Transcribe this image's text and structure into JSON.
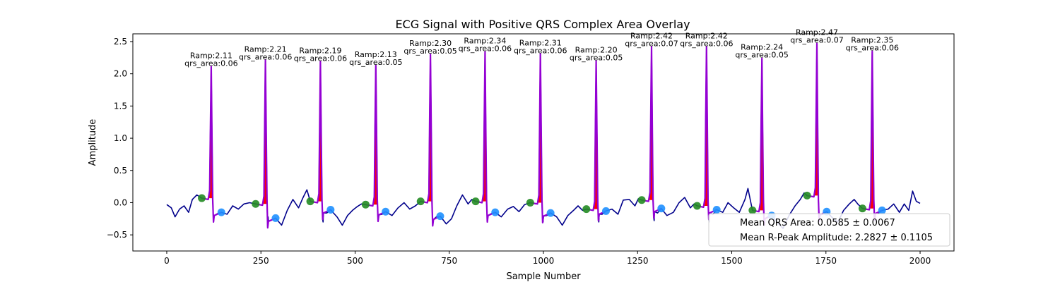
{
  "chart_data": {
    "type": "line",
    "title": "ECG Signal with Positive QRS Complex Area Overlay",
    "xlabel": "Sample Number",
    "ylabel": "Amplitude",
    "xlim": [
      -90,
      2090
    ],
    "ylim": [
      -0.75,
      2.62
    ],
    "xticks": [
      0,
      250,
      500,
      750,
      1000,
      1250,
      1500,
      1750,
      2000
    ],
    "xtick_labels": [
      "0",
      "250",
      "500",
      "750",
      "1000",
      "1250",
      "1500",
      "1750",
      "2000"
    ],
    "yticks": [
      -0.5,
      0.0,
      0.5,
      1.0,
      1.5,
      2.0,
      2.5
    ],
    "ytick_labels": [
      "−0.5",
      "0.0",
      "0.5",
      "1.0",
      "1.5",
      "2.0",
      "2.5"
    ],
    "grid": false,
    "colors": {
      "signal": "#00008b",
      "qrs_segment": "#9400d3",
      "qrs_area": "#ff0000",
      "q_marker": "#228b22",
      "s_marker": "#1e90ff"
    },
    "beats": [
      {
        "r_sample": 118,
        "r_amp": 2.11,
        "qrs_area": "0.06",
        "q_sample": 93,
        "q_amp": 0.07,
        "s_sample": 145,
        "s_amp": -0.15
      },
      {
        "r_sample": 262,
        "r_amp": 2.21,
        "qrs_area": "0.06",
        "q_sample": 236,
        "q_amp": -0.02,
        "s_sample": 289,
        "s_amp": -0.24
      },
      {
        "r_sample": 408,
        "r_amp": 2.19,
        "qrs_area": "0.06",
        "q_sample": 381,
        "q_amp": 0.02,
        "s_sample": 435,
        "s_amp": -0.11
      },
      {
        "r_sample": 555,
        "r_amp": 2.13,
        "qrs_area": "0.05",
        "q_sample": 528,
        "q_amp": -0.03,
        "s_sample": 581,
        "s_amp": -0.14
      },
      {
        "r_sample": 700,
        "r_amp": 2.3,
        "qrs_area": "0.05",
        "q_sample": 674,
        "q_amp": 0.02,
        "s_sample": 726,
        "s_amp": -0.21
      },
      {
        "r_sample": 845,
        "r_amp": 2.34,
        "qrs_area": "0.06",
        "q_sample": 820,
        "q_amp": 0.02,
        "s_sample": 872,
        "s_amp": -0.15
      },
      {
        "r_sample": 992,
        "r_amp": 2.31,
        "qrs_area": "0.06",
        "q_sample": 965,
        "q_amp": 0.0,
        "s_sample": 1019,
        "s_amp": -0.16
      },
      {
        "r_sample": 1140,
        "r_amp": 2.2,
        "qrs_area": "0.05",
        "q_sample": 1114,
        "q_amp": -0.1,
        "s_sample": 1166,
        "s_amp": -0.13
      },
      {
        "r_sample": 1287,
        "r_amp": 2.42,
        "qrs_area": "0.07",
        "q_sample": 1261,
        "q_amp": 0.04,
        "s_sample": 1313,
        "s_amp": -0.09
      },
      {
        "r_sample": 1433,
        "r_amp": 2.42,
        "qrs_area": "0.06",
        "q_sample": 1408,
        "q_amp": -0.05,
        "s_sample": 1460,
        "s_amp": -0.11
      },
      {
        "r_sample": 1580,
        "r_amp": 2.24,
        "qrs_area": "0.05",
        "q_sample": 1555,
        "q_amp": -0.12,
        "s_sample": 1606,
        "s_amp": -0.2
      },
      {
        "r_sample": 1726,
        "r_amp": 2.47,
        "qrs_area": "0.07",
        "q_sample": 1700,
        "q_amp": 0.11,
        "s_sample": 1752,
        "s_amp": -0.14
      },
      {
        "r_sample": 1873,
        "r_amp": 2.35,
        "qrs_area": "0.06",
        "q_sample": 1847,
        "q_amp": -0.09,
        "s_sample": 1899,
        "s_amp": -0.12
      }
    ],
    "baseline_points": [
      [
        0,
        -0.03
      ],
      [
        12,
        -0.08
      ],
      [
        22,
        -0.22
      ],
      [
        34,
        -0.1
      ],
      [
        46,
        -0.05
      ],
      [
        58,
        -0.15
      ],
      [
        68,
        0.05
      ],
      [
        80,
        0.12
      ],
      [
        93,
        0.07
      ],
      [
        125,
        -0.25
      ],
      [
        135,
        -0.17
      ],
      [
        145,
        -0.15
      ],
      [
        160,
        -0.18
      ],
      [
        175,
        -0.05
      ],
      [
        190,
        -0.1
      ],
      [
        205,
        -0.02
      ],
      [
        220,
        0.0
      ],
      [
        236,
        -0.02
      ],
      [
        269,
        -0.22
      ],
      [
        289,
        -0.24
      ],
      [
        305,
        -0.35
      ],
      [
        320,
        -0.12
      ],
      [
        335,
        0.05
      ],
      [
        350,
        -0.08
      ],
      [
        362,
        0.08
      ],
      [
        372,
        0.2
      ],
      [
        381,
        0.02
      ],
      [
        415,
        -0.3
      ],
      [
        425,
        -0.16
      ],
      [
        435,
        -0.11
      ],
      [
        452,
        -0.22
      ],
      [
        466,
        -0.35
      ],
      [
        480,
        -0.2
      ],
      [
        493,
        -0.12
      ],
      [
        506,
        -0.06
      ],
      [
        517,
        -0.02
      ],
      [
        528,
        -0.03
      ],
      [
        562,
        -0.25
      ],
      [
        572,
        -0.18
      ],
      [
        581,
        -0.14
      ],
      [
        598,
        -0.2
      ],
      [
        614,
        -0.08
      ],
      [
        630,
        0.0
      ],
      [
        645,
        -0.1
      ],
      [
        660,
        -0.05
      ],
      [
        674,
        0.02
      ],
      [
        707,
        -0.28
      ],
      [
        716,
        -0.22
      ],
      [
        726,
        -0.21
      ],
      [
        742,
        -0.33
      ],
      [
        756,
        -0.25
      ],
      [
        770,
        -0.05
      ],
      [
        785,
        0.12
      ],
      [
        800,
        -0.02
      ],
      [
        810,
        0.05
      ],
      [
        820,
        0.02
      ],
      [
        852,
        -0.25
      ],
      [
        862,
        -0.17
      ],
      [
        872,
        -0.15
      ],
      [
        888,
        -0.22
      ],
      [
        905,
        -0.1
      ],
      [
        920,
        -0.06
      ],
      [
        935,
        -0.14
      ],
      [
        950,
        -0.03
      ],
      [
        965,
        0.0
      ],
      [
        999,
        -0.3
      ],
      [
        1009,
        -0.2
      ],
      [
        1019,
        -0.16
      ],
      [
        1035,
        -0.22
      ],
      [
        1050,
        -0.35
      ],
      [
        1065,
        -0.2
      ],
      [
        1080,
        -0.12
      ],
      [
        1092,
        -0.05
      ],
      [
        1104,
        -0.12
      ],
      [
        1114,
        -0.1
      ],
      [
        1147,
        -0.3
      ],
      [
        1156,
        -0.18
      ],
      [
        1166,
        -0.13
      ],
      [
        1182,
        -0.1
      ],
      [
        1198,
        -0.18
      ],
      [
        1212,
        0.04
      ],
      [
        1228,
        0.05
      ],
      [
        1243,
        -0.05
      ],
      [
        1252,
        0.06
      ],
      [
        1261,
        0.04
      ],
      [
        1294,
        -0.28
      ],
      [
        1303,
        -0.16
      ],
      [
        1313,
        -0.09
      ],
      [
        1328,
        -0.2
      ],
      [
        1345,
        -0.15
      ],
      [
        1360,
        0.0
      ],
      [
        1375,
        0.08
      ],
      [
        1390,
        -0.08
      ],
      [
        1400,
        -0.02
      ],
      [
        1408,
        -0.05
      ],
      [
        1440,
        -0.3
      ],
      [
        1450,
        -0.18
      ],
      [
        1460,
        -0.11
      ],
      [
        1476,
        -0.15
      ],
      [
        1490,
        0.0
      ],
      [
        1505,
        -0.08
      ],
      [
        1520,
        -0.15
      ],
      [
        1535,
        0.05
      ],
      [
        1543,
        0.22
      ],
      [
        1549,
        0.05
      ],
      [
        1555,
        -0.12
      ],
      [
        1587,
        -0.32
      ],
      [
        1596,
        -0.22
      ],
      [
        1606,
        -0.2
      ],
      [
        1620,
        -0.3
      ],
      [
        1636,
        -0.4
      ],
      [
        1652,
        -0.2
      ],
      [
        1668,
        -0.05
      ],
      [
        1682,
        0.05
      ],
      [
        1692,
        0.15
      ],
      [
        1700,
        0.11
      ],
      [
        1733,
        -0.28
      ],
      [
        1742,
        -0.18
      ],
      [
        1752,
        -0.14
      ],
      [
        1768,
        -0.24
      ],
      [
        1782,
        -0.3
      ],
      [
        1797,
        -0.12
      ],
      [
        1812,
        -0.02
      ],
      [
        1825,
        0.05
      ],
      [
        1836,
        -0.03
      ],
      [
        1847,
        -0.09
      ],
      [
        1880,
        -0.28
      ],
      [
        1890,
        -0.16
      ],
      [
        1899,
        -0.12
      ],
      [
        1915,
        -0.1
      ],
      [
        1930,
        -0.02
      ],
      [
        1945,
        -0.15
      ],
      [
        1958,
        -0.02
      ],
      [
        1970,
        -0.12
      ],
      [
        1980,
        0.18
      ],
      [
        1990,
        0.02
      ],
      [
        2000,
        -0.01
      ]
    ],
    "legend": {
      "placement": "lower-right",
      "entries": [
        "Mean QRS Area: 0.0585 ± 0.0067",
        "Mean R-Peak Amplitude: 2.2827 ± 0.1105"
      ]
    }
  }
}
